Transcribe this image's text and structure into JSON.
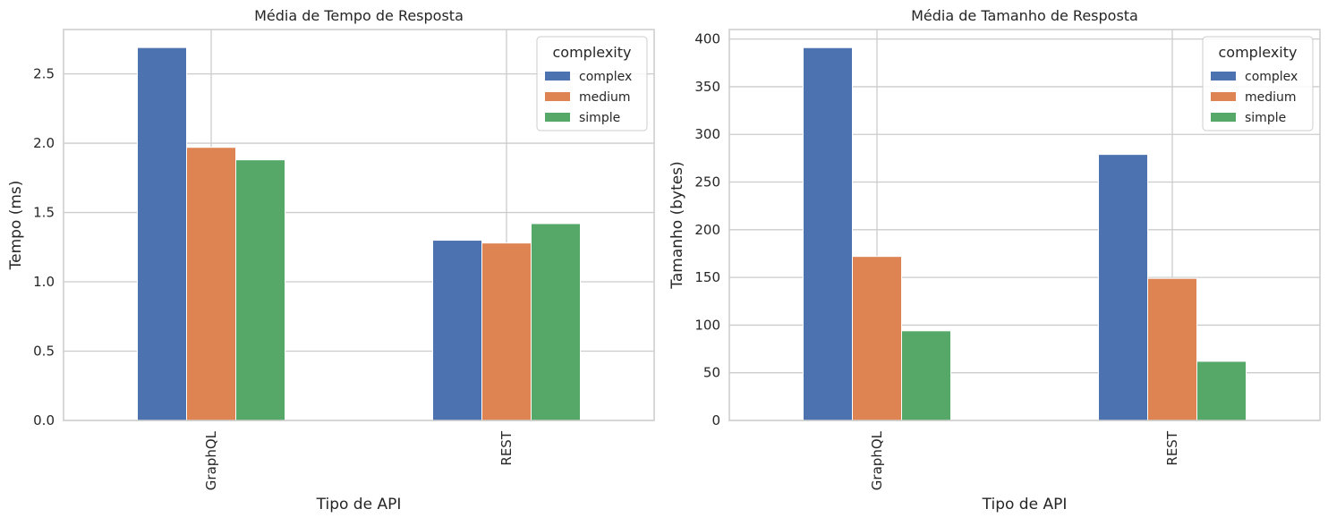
{
  "colors": {
    "complex": "#4c72b0",
    "medium": "#dd8452",
    "simple": "#55a868",
    "grid": "#cccccc",
    "axes_edge": "#cccccc",
    "background": "#ffffff"
  },
  "chart_data": [
    {
      "type": "bar",
      "title": "Média de Tempo de Resposta",
      "xlabel": "Tipo de API",
      "ylabel": "Tempo (ms)",
      "categories": [
        "GraphQL",
        "REST"
      ],
      "series": [
        {
          "name": "complex",
          "values": [
            2.69,
            1.3
          ]
        },
        {
          "name": "medium",
          "values": [
            1.97,
            1.28
          ]
        },
        {
          "name": "simple",
          "values": [
            1.88,
            1.42
          ]
        }
      ],
      "ylim": [
        0,
        2.82
      ],
      "yticks": [
        0.0,
        0.5,
        1.0,
        1.5,
        2.0,
        2.5
      ],
      "ytick_labels": [
        "0.0",
        "0.5",
        "1.0",
        "1.5",
        "2.0",
        "2.5"
      ],
      "grid": true,
      "legend": {
        "title": "complexity",
        "placement": "top-right"
      }
    },
    {
      "type": "bar",
      "title": "Média de Tamanho de Resposta",
      "xlabel": "Tipo de API",
      "ylabel": "Tamanho (bytes)",
      "categories": [
        "GraphQL",
        "REST"
      ],
      "series": [
        {
          "name": "complex",
          "values": [
            391,
            279
          ]
        },
        {
          "name": "medium",
          "values": [
            172,
            149
          ]
        },
        {
          "name": "simple",
          "values": [
            94,
            62
          ]
        }
      ],
      "ylim": [
        0,
        410
      ],
      "yticks": [
        0,
        50,
        100,
        150,
        200,
        250,
        300,
        350,
        400
      ],
      "ytick_labels": [
        "0",
        "50",
        "100",
        "150",
        "200",
        "250",
        "300",
        "350",
        "400"
      ],
      "grid": true,
      "legend": {
        "title": "complexity",
        "placement": "top-right"
      }
    }
  ]
}
